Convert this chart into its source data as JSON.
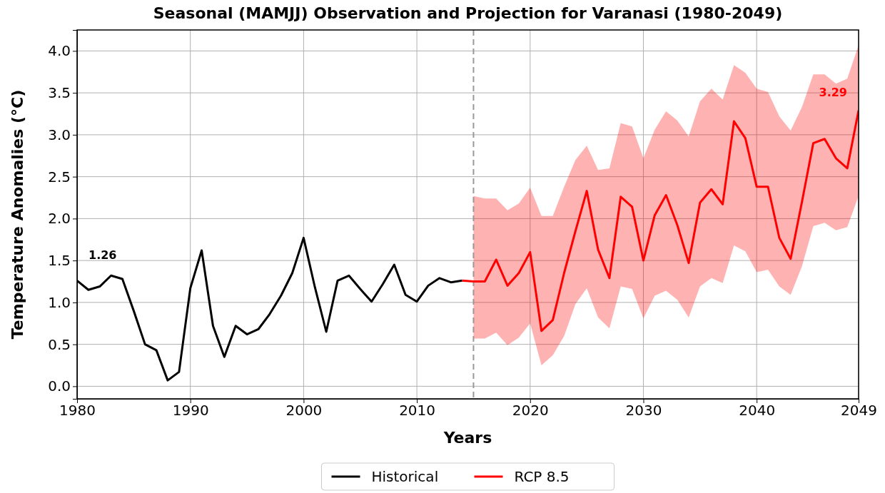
{
  "chart_data": {
    "type": "line",
    "title": "Seasonal (MAMJJ) Observation and Projection for Varanasi (1980-2049)",
    "xlabel": "Years",
    "ylabel": "Temperature Anomalies (°C)",
    "xlim": [
      1980,
      2049
    ],
    "xticks": [
      1980,
      1990,
      2000,
      2010,
      2020,
      2030,
      2040,
      2049
    ],
    "ylim": [
      -0.15,
      4.25
    ],
    "yticks": [
      {
        "value": 0,
        "label": "0.0"
      },
      0.5,
      {
        "value": 1,
        "label": "1.0"
      },
      1.5,
      {
        "value": 2,
        "label": "2.0"
      },
      2.5,
      {
        "value": 3,
        "label": "3.0"
      },
      3.5,
      {
        "value": 4,
        "label": "4.0"
      }
    ],
    "grid": true,
    "legend": "bottom",
    "line_style": "solid",
    "series": [
      {
        "name": "Historical",
        "color": "#000000",
        "x": [
          1980,
          1981,
          1982,
          1983,
          1984,
          1985,
          1986,
          1987,
          1988,
          1989,
          1990,
          1991,
          1992,
          1993,
          1994,
          1995,
          1996,
          1997,
          1998,
          1999,
          2000,
          2001,
          2002,
          2003,
          2004,
          2005,
          2006,
          2007,
          2008,
          2009,
          2010,
          2011,
          2012,
          2013,
          2014
        ],
        "values": [
          1.26,
          1.15,
          1.19,
          1.32,
          1.28,
          0.9,
          0.5,
          0.43,
          0.07,
          0.17,
          1.17,
          1.62,
          0.72,
          0.35,
          0.72,
          0.62,
          0.68,
          0.86,
          1.08,
          1.35,
          1.77,
          1.18,
          0.65,
          1.26,
          1.32,
          1.16,
          1.01,
          1.22,
          1.45,
          1.09,
          1.01,
          1.2,
          1.29,
          1.24,
          1.26
        ]
      },
      {
        "name": "RCP 8.5",
        "color": "#ff0000",
        "x": [
          2014,
          2015,
          2016,
          2017,
          2018,
          2019,
          2020,
          2021,
          2022,
          2023,
          2024,
          2025,
          2026,
          2027,
          2028,
          2029,
          2030,
          2031,
          2032,
          2033,
          2034,
          2035,
          2036,
          2037,
          2038,
          2039,
          2040,
          2041,
          2042,
          2043,
          2044,
          2045,
          2046,
          2047,
          2048,
          2049
        ],
        "values": [
          1.26,
          1.25,
          1.25,
          1.51,
          1.2,
          1.35,
          1.6,
          0.66,
          0.79,
          1.35,
          1.85,
          2.33,
          1.63,
          1.29,
          2.26,
          2.14,
          1.5,
          2.04,
          2.28,
          1.92,
          1.47,
          2.19,
          2.35,
          2.17,
          3.16,
          2.96,
          2.38,
          2.38,
          1.77,
          1.52,
          2.2,
          2.9,
          2.95,
          2.72,
          2.6,
          3.29
        ],
        "lower": [
          null,
          0.57,
          0.57,
          0.64,
          0.49,
          0.58,
          0.75,
          0.25,
          0.37,
          0.6,
          0.98,
          1.17,
          0.82,
          0.69,
          1.19,
          1.16,
          0.81,
          1.08,
          1.14,
          1.03,
          0.82,
          1.19,
          1.29,
          1.23,
          1.68,
          1.61,
          1.36,
          1.39,
          1.19,
          1.09,
          1.43,
          1.91,
          1.95,
          1.86,
          1.9,
          2.27
        ],
        "upper": [
          null,
          2.27,
          2.24,
          2.24,
          2.1,
          2.18,
          2.37,
          2.03,
          2.03,
          2.38,
          2.7,
          2.87,
          2.58,
          2.6,
          3.14,
          3.1,
          2.72,
          3.06,
          3.28,
          3.17,
          2.98,
          3.4,
          3.55,
          3.42,
          3.83,
          3.74,
          3.55,
          3.51,
          3.22,
          3.05,
          3.33,
          3.72,
          3.72,
          3.61,
          3.67,
          4.07
        ]
      }
    ],
    "ref_lines": [
      {
        "axis": "x",
        "value": 2015,
        "color": "#999999",
        "line_style": "dashed"
      }
    ],
    "annotations": [
      {
        "text": "1.26",
        "x": 1980,
        "y": 1.26
      },
      {
        "text": "3.29",
        "x": 2049,
        "y": 3.29
      }
    ]
  }
}
